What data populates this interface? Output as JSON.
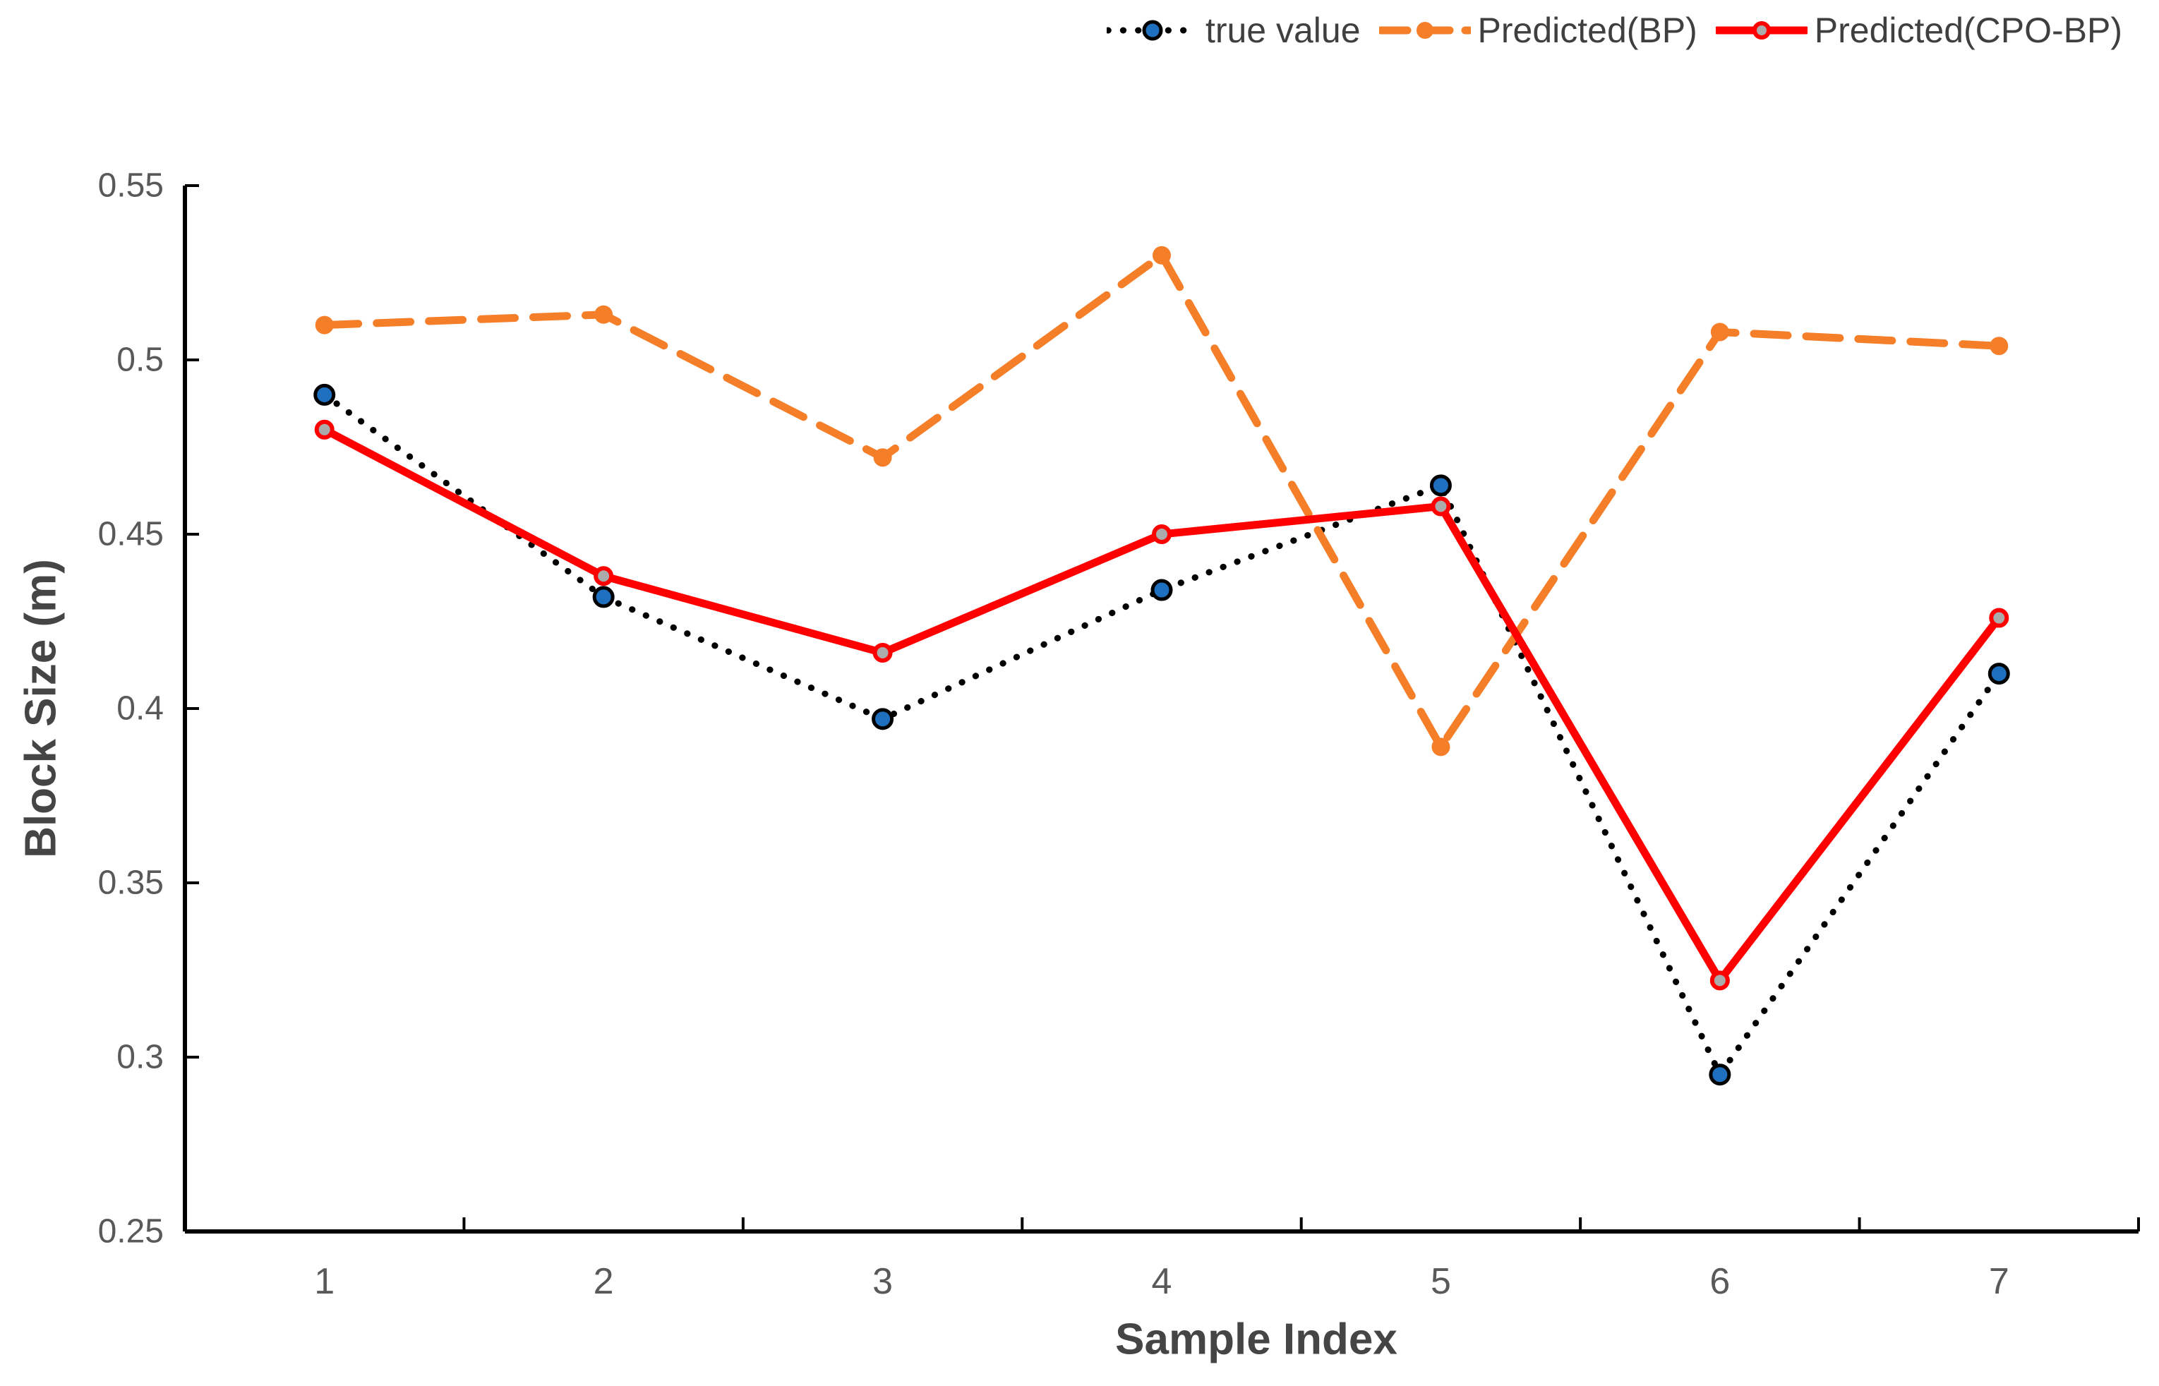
{
  "chart_data": {
    "type": "line",
    "title": "",
    "xlabel": "Sample Index",
    "ylabel": "Block Size (m)",
    "categories": [
      "1",
      "2",
      "3",
      "4",
      "5",
      "6",
      "7"
    ],
    "ylim": [
      0.25,
      0.55
    ],
    "yticks": [
      {
        "value": 0.55,
        "label": "0.55"
      },
      {
        "value": 0.5,
        "label": "0.5"
      },
      {
        "value": 0.45,
        "label": "0.45"
      },
      {
        "value": 0.4,
        "label": "0.4"
      },
      {
        "value": 0.35,
        "label": "0.35"
      },
      {
        "value": 0.3,
        "label": "0.3"
      },
      {
        "value": 0.25,
        "label": "0.25"
      }
    ],
    "grid": false,
    "legend_position": "top-right",
    "series": [
      {
        "name": "true value",
        "style": "dotted",
        "color": "#000000",
        "marker_fill": "#1f6fbf",
        "marker_stroke": "#000000",
        "values": [
          0.49,
          0.432,
          0.397,
          0.434,
          0.464,
          0.295,
          0.41
        ]
      },
      {
        "name": "Predicted(BP)",
        "style": "dashed",
        "color": "#f57e28",
        "marker_fill": "#f57e28",
        "marker_stroke": "#f57e28",
        "values": [
          0.51,
          0.513,
          0.472,
          0.53,
          0.389,
          0.508,
          0.504
        ]
      },
      {
        "name": "Predicted(CPO-BP)",
        "style": "solid",
        "color": "#fe0000",
        "marker_fill": "#ababab",
        "marker_stroke": "#fe0000",
        "values": [
          0.48,
          0.438,
          0.416,
          0.45,
          0.458,
          0.322,
          0.426
        ]
      }
    ],
    "axis_color": "#000000",
    "tick_label_color": "#595959"
  }
}
